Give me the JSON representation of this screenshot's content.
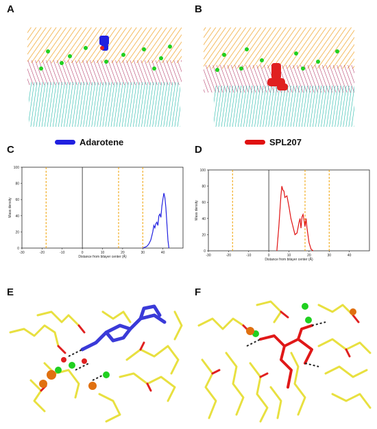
{
  "panels": {
    "a": {
      "letter": "A"
    },
    "b": {
      "letter": "B"
    },
    "c": {
      "letter": "C"
    },
    "d": {
      "letter": "D"
    },
    "e": {
      "letter": "E"
    },
    "f": {
      "letter": "F"
    }
  },
  "legend": {
    "adarotene": {
      "label": "Adarotene",
      "color": "#2020e0"
    },
    "spl207": {
      "label": "SPL207",
      "color": "#e01010"
    }
  },
  "colors": {
    "headgroup": "#f0a020",
    "glycerol": "#c03060",
    "tail": "#20b8a8",
    "ion": "#20d020",
    "stick_carbon": "#e8e040",
    "stick_oxygen": "#e02020",
    "phosphorus": "#e07010",
    "guide_line": "#f0a000"
  },
  "chart_data": [
    {
      "type": "line",
      "title": "",
      "xlabel": "Distance from bilayer center (Å)",
      "ylabel": "Mass density",
      "xlim": [
        -30,
        50
      ],
      "ylim": [
        0,
        100
      ],
      "xticks": [
        -30,
        -20,
        -10,
        0,
        10,
        20,
        30,
        40
      ],
      "yticks": [
        0,
        20,
        40,
        60,
        80,
        100
      ],
      "guide_lines_x": [
        -18,
        18,
        30
      ],
      "series": [
        {
          "color": "#2020e0",
          "x": [
            30,
            32,
            33,
            34,
            35,
            35.5,
            36,
            36.5,
            37,
            37.5,
            38,
            38.5,
            39,
            39.5,
            40,
            40.5,
            41,
            41.5,
            42,
            42.5,
            43
          ],
          "y": [
            0,
            2,
            5,
            10,
            20,
            28,
            25,
            30,
            32,
            28,
            40,
            42,
            38,
            52,
            60,
            68,
            62,
            50,
            30,
            10,
            0
          ]
        }
      ]
    },
    {
      "type": "line",
      "title": "",
      "xlabel": "Distance from bilayer center (Å)",
      "ylabel": "Mass density",
      "xlim": [
        -30,
        50
      ],
      "ylim": [
        0,
        100
      ],
      "xticks": [
        -30,
        -20,
        -10,
        0,
        10,
        20,
        30,
        40
      ],
      "yticks": [
        0,
        20,
        40,
        60,
        80,
        100
      ],
      "guide_lines_x": [
        -18,
        18,
        30
      ],
      "series": [
        {
          "color": "#e01010",
          "x": [
            4,
            5,
            6,
            6.5,
            7,
            7.5,
            8,
            9,
            10,
            11,
            12,
            13,
            14,
            15,
            15.5,
            16,
            16.5,
            17,
            17.5,
            18,
            18.5,
            19,
            20,
            21,
            22
          ],
          "y": [
            0,
            30,
            68,
            80,
            75,
            74,
            66,
            68,
            55,
            40,
            30,
            20,
            22,
            35,
            40,
            28,
            42,
            45,
            38,
            30,
            40,
            28,
            10,
            2,
            0
          ]
        }
      ]
    }
  ]
}
